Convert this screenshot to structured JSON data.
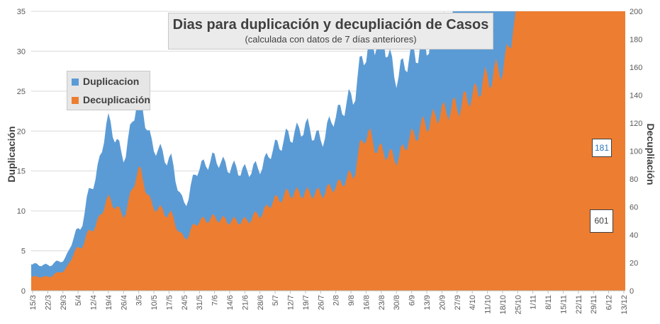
{
  "chart_data": {
    "type": "area",
    "title": "Dias para duplicación y decupliación de Casos",
    "subtitle": "(calculada con datos de 7 días anteriores)",
    "ylabel_left": "Duplicación",
    "ylabel_right": "Decupliación",
    "ylim_left": [
      0,
      35
    ],
    "ylim_right": [
      0,
      200
    ],
    "yticks_left": [
      "0",
      "5",
      "10",
      "15",
      "20",
      "25",
      "30",
      "35"
    ],
    "yticks_right": [
      "0",
      "20",
      "40",
      "60",
      "80",
      "100",
      "120",
      "140",
      "160",
      "180",
      "200"
    ],
    "x_ticks": [
      "15/3",
      "22/3",
      "29/3",
      "5/4",
      "12/4",
      "19/4",
      "26/4",
      "3/5",
      "10/5",
      "17/5",
      "24/5",
      "31/5",
      "7/6",
      "14/6",
      "21/6",
      "28/6",
      "5/7",
      "12/7",
      "19/7",
      "26/7",
      "2/8",
      "9/8",
      "16/8",
      "23/8",
      "30/8",
      "6/9",
      "13/9",
      "20/9",
      "27/9",
      "4/10",
      "11/10",
      "18/10",
      "25/10",
      "1/11",
      "8/11",
      "15/11",
      "22/11",
      "29/11",
      "6/12",
      "13/12"
    ],
    "legend": [
      "Duplicacion",
      "Decuplicación"
    ],
    "legend_position": "left",
    "colors": {
      "Duplicacion": "#5b9bd5",
      "Decuplicación": "#ed7d31"
    },
    "series": [
      {
        "name": "Duplicacion",
        "axis": "left",
        "week_values": [
          3.3,
          3.2,
          3.8,
          7.5,
          13.5,
          21,
          17,
          24,
          18,
          16.5,
          11,
          15.5,
          16.5,
          15.5,
          15,
          15.5,
          18,
          19.5,
          20.5,
          19,
          22,
          24,
          30,
          32,
          27,
          29.5,
          31,
          33,
          35,
          35,
          35,
          35,
          35,
          35,
          35,
          35,
          35,
          35,
          35,
          35
        ]
      },
      {
        "name": "Decuplicación",
        "axis": "right",
        "week_values": [
          10,
          10,
          14,
          30,
          45,
          65,
          55,
          85,
          60,
          55,
          38,
          50,
          52,
          50,
          50,
          55,
          65,
          70,
          70,
          70,
          75,
          82,
          112,
          100,
          95,
          110,
          120,
          128,
          132,
          140,
          152,
          160,
          200,
          200,
          200,
          200,
          200,
          200,
          200,
          200
        ]
      }
    ],
    "callouts": [
      {
        "series": "Duplicacion",
        "label": "181"
      },
      {
        "series": "Decuplicación",
        "label": "601"
      }
    ]
  }
}
